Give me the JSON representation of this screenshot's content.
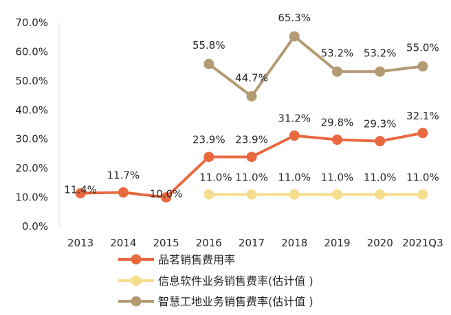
{
  "chart_data": {
    "type": "line",
    "categories": [
      "2013",
      "2014",
      "2015",
      "2016",
      "2017",
      "2018",
      "2019",
      "2020",
      "2021Q3"
    ],
    "ylim": [
      0,
      70
    ],
    "yticks": [
      "0.0%",
      "10.0%",
      "20.0%",
      "30.0%",
      "40.0%",
      "50.0%",
      "60.0%",
      "70.0%"
    ],
    "grid": false,
    "legend_position": "bottom",
    "series": [
      {
        "name": "品茗销售费用率",
        "color": "#E8683F",
        "values": [
          11.4,
          11.7,
          10.0,
          23.9,
          23.9,
          31.2,
          29.8,
          29.3,
          32.1
        ],
        "labels": [
          "11.4%",
          "11.7%",
          "10.0%",
          "23.9%",
          "23.9%",
          "31.2%",
          "29.8%",
          "29.3%",
          "32.1%"
        ]
      },
      {
        "name": "信息软件业务销售费率(估计值 )",
        "color": "#F5DD8E",
        "values": [
          null,
          null,
          null,
          11.0,
          11.0,
          11.0,
          11.0,
          11.0,
          11.0
        ],
        "labels": [
          null,
          null,
          null,
          "11.0%",
          "11.0%",
          "11.0%",
          "11.0%",
          "11.0%",
          "11.0%"
        ]
      },
      {
        "name": "智慧工地业务销售费率(估计值 )",
        "color": "#B39A72",
        "values": [
          null,
          null,
          null,
          55.8,
          44.7,
          65.3,
          53.2,
          53.2,
          55.0
        ],
        "labels": [
          null,
          null,
          null,
          "55.8%",
          "44.7%",
          "65.3%",
          "53.2%",
          "53.2%",
          "55.0%"
        ]
      }
    ]
  }
}
